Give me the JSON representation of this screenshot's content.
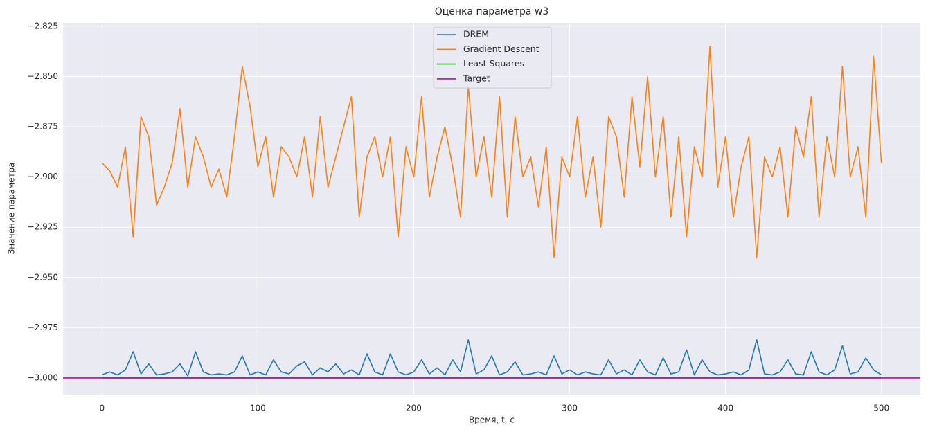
{
  "chart_data": {
    "type": "line",
    "title": "Оценка параметра w3",
    "xlabel": "Время, t, с",
    "ylabel": "Значение параметра",
    "xlim": [
      -25,
      525
    ],
    "xticks": [
      0,
      100,
      200,
      300,
      400,
      500
    ],
    "ylim": [
      -3.0083,
      -2.8233
    ],
    "yticks": [
      {
        "value": -3.0,
        "label": "−3.000"
      },
      {
        "value": -2.975,
        "label": "−2.975"
      },
      {
        "value": -2.95,
        "label": "−2.950"
      },
      {
        "value": -2.925,
        "label": "−2.925"
      },
      {
        "value": -2.9,
        "label": "−2.900"
      },
      {
        "value": -2.875,
        "label": "−2.875"
      },
      {
        "value": -2.85,
        "label": "−2.850"
      },
      {
        "value": -2.825,
        "label": "−2.825"
      }
    ],
    "grid": true,
    "legend": "upper center",
    "x": [
      0,
      5,
      10,
      15,
      20,
      25,
      30,
      35,
      40,
      45,
      50,
      55,
      60,
      65,
      70,
      75,
      80,
      85,
      90,
      95,
      100,
      105,
      110,
      115,
      120,
      125,
      130,
      135,
      140,
      145,
      150,
      155,
      160,
      165,
      170,
      175,
      180,
      185,
      190,
      195,
      200,
      205,
      210,
      215,
      220,
      225,
      230,
      235,
      240,
      245,
      250,
      255,
      260,
      265,
      270,
      275,
      280,
      285,
      290,
      295,
      300,
      305,
      310,
      315,
      320,
      325,
      330,
      335,
      340,
      345,
      350,
      355,
      360,
      365,
      370,
      375,
      380,
      385,
      390,
      395,
      400,
      405,
      410,
      415,
      420,
      425,
      430,
      435,
      440,
      445,
      450,
      455,
      460,
      465,
      470,
      475,
      480,
      485,
      490,
      495,
      500
    ],
    "series": [
      {
        "name": "DREM",
        "color": "#1f77b4",
        "values": [
          -2.9985,
          -2.997,
          -2.9985,
          -2.996,
          -2.987,
          -2.998,
          -2.993,
          -2.9985,
          -2.998,
          -2.997,
          -2.993,
          -2.999,
          -2.987,
          -2.997,
          -2.9985,
          -2.998,
          -2.9985,
          -2.997,
          -2.989,
          -2.9985,
          -2.997,
          -2.9985,
          -2.991,
          -2.997,
          -2.998,
          -2.994,
          -2.992,
          -2.9985,
          -2.995,
          -2.997,
          -2.993,
          -2.998,
          -2.996,
          -2.9985,
          -2.988,
          -2.997,
          -2.9985,
          -2.988,
          -2.997,
          -2.9985,
          -2.997,
          -2.991,
          -2.998,
          -2.995,
          -2.9985,
          -2.991,
          -2.997,
          -2.981,
          -2.998,
          -2.996,
          -2.989,
          -2.9985,
          -2.997,
          -2.992,
          -2.9985,
          -2.998,
          -2.997,
          -2.9985,
          -2.989,
          -2.998,
          -2.996,
          -2.9985,
          -2.997,
          -2.998,
          -2.9985,
          -2.991,
          -2.998,
          -2.996,
          -2.9985,
          -2.991,
          -2.997,
          -2.9985,
          -2.99,
          -2.998,
          -2.997,
          -2.986,
          -2.9985,
          -2.991,
          -2.997,
          -2.9985,
          -2.998,
          -2.997,
          -2.9985,
          -2.996,
          -2.981,
          -2.998,
          -2.9985,
          -2.997,
          -2.991,
          -2.998,
          -2.9985,
          -2.987,
          -2.997,
          -2.9985,
          -2.996,
          -2.984,
          -2.998,
          -2.997,
          -2.99,
          -2.996,
          -2.9985
        ]
      },
      {
        "name": "Gradient Descent",
        "color": "#ff7f0e",
        "values": [
          -2.893,
          -2.897,
          -2.905,
          -2.885,
          -2.93,
          -2.87,
          -2.88,
          -2.914,
          -2.905,
          -2.893,
          -2.866,
          -2.905,
          -2.88,
          -2.89,
          -2.905,
          -2.896,
          -2.91,
          -2.88,
          -2.845,
          -2.865,
          -2.895,
          -2.88,
          -2.91,
          -2.885,
          -2.89,
          -2.9,
          -2.88,
          -2.91,
          -2.87,
          -2.905,
          -2.89,
          -2.875,
          -2.86,
          -2.92,
          -2.89,
          -2.88,
          -2.9,
          -2.88,
          -2.93,
          -2.885,
          -2.9,
          -2.86,
          -2.91,
          -2.89,
          -2.875,
          -2.895,
          -2.92,
          -2.855,
          -2.9,
          -2.88,
          -2.91,
          -2.86,
          -2.92,
          -2.87,
          -2.9,
          -2.89,
          -2.915,
          -2.885,
          -2.94,
          -2.89,
          -2.9,
          -2.87,
          -2.91,
          -2.89,
          -2.925,
          -2.87,
          -2.88,
          -2.91,
          -2.86,
          -2.895,
          -2.85,
          -2.9,
          -2.87,
          -2.92,
          -2.88,
          -2.93,
          -2.885,
          -2.9,
          -2.835,
          -2.905,
          -2.88,
          -2.92,
          -2.895,
          -2.88,
          -2.94,
          -2.89,
          -2.9,
          -2.885,
          -2.92,
          -2.875,
          -2.89,
          -2.86,
          -2.92,
          -2.88,
          -2.9,
          -2.845,
          -2.9,
          -2.885,
          -2.92,
          -2.84,
          -2.893
        ]
      },
      {
        "name": "Least Squares",
        "color": "#2ca02c",
        "x": [
          0,
          500
        ],
        "values": [
          -3.0,
          -3.0
        ]
      },
      {
        "name": "Target",
        "color": "#bf00bf",
        "hline": -3.0
      }
    ]
  }
}
